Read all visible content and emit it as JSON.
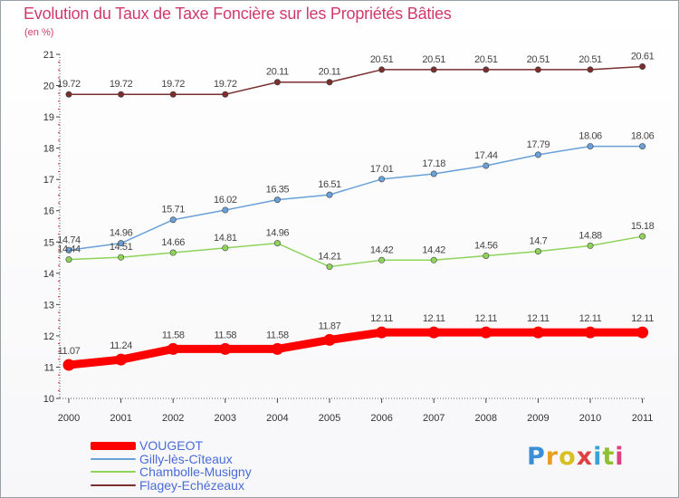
{
  "chart_data": {
    "type": "line",
    "title": "Evolution du Taux de Taxe Foncière sur les Propriétés Bâties",
    "ylabel": "(en %)",
    "xlabel": "",
    "x": [
      "2000",
      "2001",
      "2002",
      "2003",
      "2004",
      "2005",
      "2006",
      "2007",
      "2008",
      "2009",
      "2010",
      "2011"
    ],
    "ylim": [
      10,
      21
    ],
    "yticks": [
      "10",
      "11",
      "12",
      "13",
      "14",
      "15",
      "16",
      "17",
      "18",
      "19",
      "20",
      "21"
    ],
    "grid": false,
    "legend_position": "bottom-left",
    "series": [
      {
        "name": "VOUGEOT",
        "color": "#ff0000",
        "emphasis": true,
        "values": [
          11.07,
          11.24,
          11.58,
          11.58,
          11.58,
          11.87,
          12.11,
          12.11,
          12.11,
          12.11,
          12.11,
          12.11
        ],
        "labels": [
          "11.07",
          "11.24",
          "11.58",
          "11.58",
          "11.58",
          "11.87",
          "12.11",
          "12.11",
          "12.11",
          "12.11",
          "12.11",
          "12.11"
        ]
      },
      {
        "name": "Gilly-lès-Cîteaux",
        "color": "#6aa0d8",
        "emphasis": false,
        "values": [
          14.74,
          14.96,
          15.71,
          16.02,
          16.35,
          16.51,
          17.01,
          17.18,
          17.44,
          17.79,
          18.06,
          18.06
        ],
        "labels": [
          "14.74",
          "14.96",
          "15.71",
          "16.02",
          "16.35",
          "16.51",
          "17.01",
          "17.18",
          "17.44",
          "17.79",
          "18.06",
          "18.06"
        ]
      },
      {
        "name": "Chambolle-Musigny",
        "color": "#8fd35a",
        "emphasis": false,
        "values": [
          14.44,
          14.51,
          14.66,
          14.81,
          14.96,
          14.21,
          14.42,
          14.42,
          14.56,
          14.7,
          14.88,
          15.18
        ],
        "labels": [
          "14.44",
          "14.51",
          "14.66",
          "14.81",
          "14.96",
          "14.21",
          "14.42",
          "14.42",
          "14.56",
          "14.7",
          "14.88",
          "15.18"
        ]
      },
      {
        "name": "Flagey-Echézeaux",
        "color": "#7a2e2e",
        "emphasis": false,
        "values": [
          19.72,
          19.72,
          19.72,
          19.72,
          20.11,
          20.11,
          20.51,
          20.51,
          20.51,
          20.51,
          20.51,
          20.61
        ],
        "labels": [
          "19.72",
          "19.72",
          "19.72",
          "19.72",
          "20.11",
          "20.11",
          "20.51",
          "20.51",
          "20.51",
          "20.51",
          "20.51",
          "20.61"
        ]
      }
    ]
  },
  "brand": {
    "letters": [
      "P",
      "r",
      "o",
      "x",
      "i",
      "t",
      "i"
    ],
    "colors": [
      "#3a8fd8",
      "#e8a020",
      "#d8c020",
      "#e04040",
      "#3aa0d8",
      "#8fc030",
      "#e04080"
    ]
  }
}
